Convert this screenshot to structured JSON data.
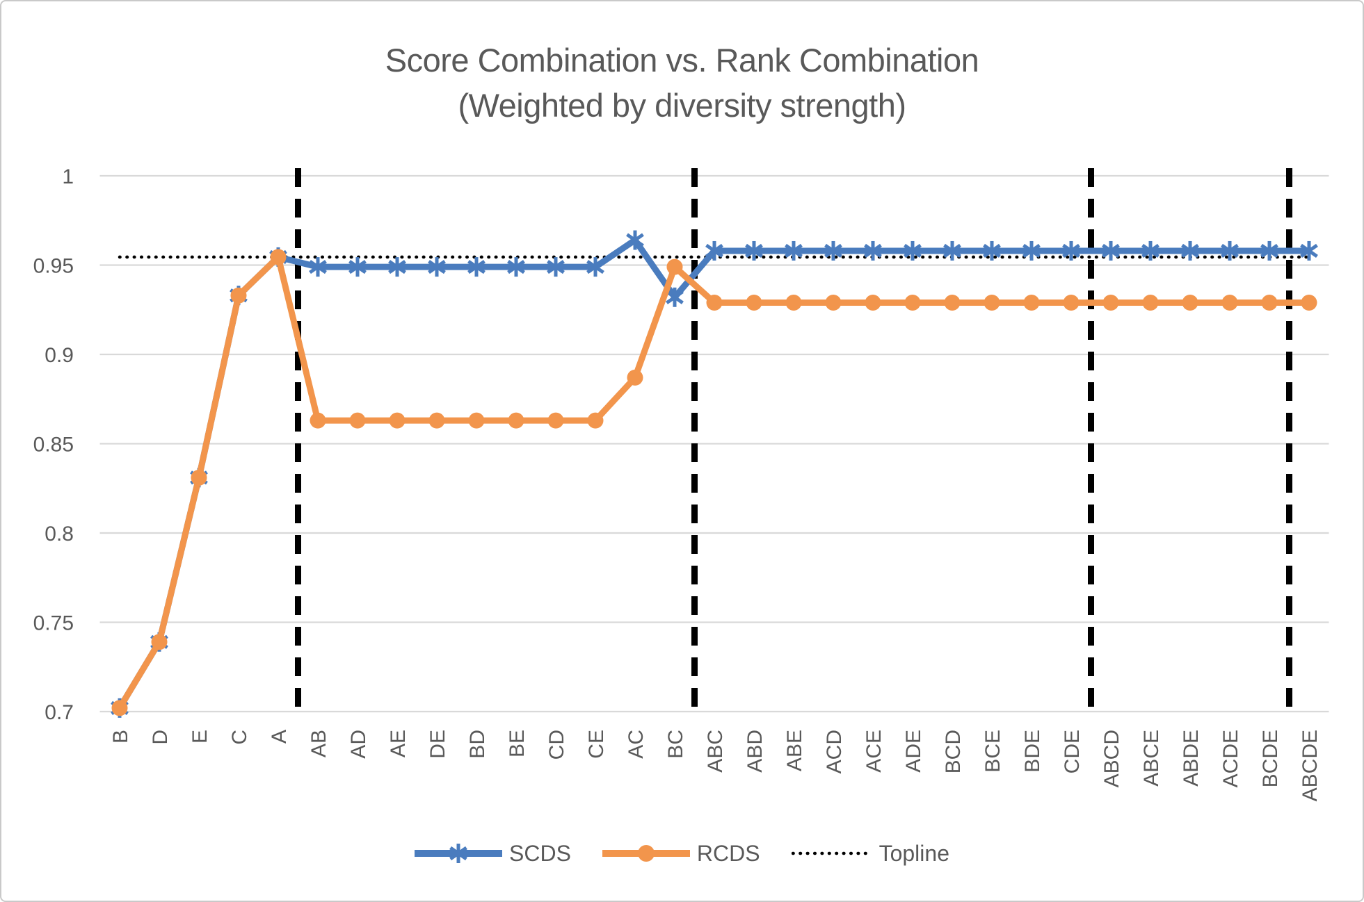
{
  "window": {
    "background": "#ffffff",
    "border_color": "#c9c9c9"
  },
  "title": {
    "line1": "Score Combination vs. Rank Combination",
    "line2": "(Weighted by diversity strength)",
    "color": "#595959"
  },
  "legend": {
    "items": [
      {
        "label": "SCDS",
        "swatch": "line-asterisk-marker",
        "color": "#4a7cbe"
      },
      {
        "label": "RCDS",
        "swatch": "line-circle-marker",
        "color": "#f2954c"
      },
      {
        "label": "Topline",
        "swatch": "dotted-line",
        "color": "#000000"
      }
    ]
  },
  "chart_data": {
    "type": "line",
    "title": "Score Combination vs. Rank Combination (Weighted by diversity strength)",
    "xlabel": "",
    "ylabel": "",
    "ylim": [
      0.7,
      1.0
    ],
    "yticks": [
      1,
      0.95,
      0.9,
      0.85,
      0.8,
      0.75,
      0.7
    ],
    "ytick_labels": [
      "1",
      "0.95",
      "0.9",
      "0.85",
      "0.8",
      "0.75",
      "0.7"
    ],
    "grid": true,
    "gridline_color": "#d9d9d9",
    "axis_text_color": "#595959",
    "legend_position": "bottom",
    "categories": [
      "B",
      "D",
      "E",
      "C",
      "A",
      "AB",
      "AD",
      "AE",
      "DE",
      "BD",
      "BE",
      "CD",
      "CE",
      "AC",
      "BC",
      "ABC",
      "ABD",
      "ABE",
      "ACD",
      "ACE",
      "ADE",
      "BCD",
      "BCE",
      "BDE",
      "CDE",
      "ABCD",
      "ABCE",
      "ABDE",
      "ACDE",
      "BCDE",
      "ABCDE"
    ],
    "separators_after_index": [
      4,
      14,
      24,
      29
    ],
    "separator_style": {
      "color": "#000000",
      "dashed": true
    },
    "series": [
      {
        "name": "SCDS",
        "color": "#4a7cbe",
        "marker": "asterisk",
        "values": [
          0.702,
          0.739,
          0.831,
          0.933,
          0.9545,
          0.949,
          0.949,
          0.949,
          0.949,
          0.949,
          0.949,
          0.949,
          0.949,
          0.964,
          0.932,
          0.958,
          0.958,
          0.958,
          0.958,
          0.958,
          0.958,
          0.958,
          0.958,
          0.958,
          0.958,
          0.958,
          0.958,
          0.958,
          0.958,
          0.958,
          0.958
        ]
      },
      {
        "name": "RCDS",
        "color": "#f2954c",
        "marker": "circle",
        "values": [
          0.702,
          0.739,
          0.831,
          0.933,
          0.9545,
          0.863,
          0.863,
          0.863,
          0.863,
          0.863,
          0.863,
          0.863,
          0.863,
          0.887,
          0.949,
          0.929,
          0.929,
          0.929,
          0.929,
          0.929,
          0.929,
          0.929,
          0.929,
          0.929,
          0.929,
          0.929,
          0.929,
          0.929,
          0.929,
          0.929,
          0.929
        ]
      }
    ],
    "topline": {
      "name": "Topline",
      "value": 0.9545,
      "color": "#000000",
      "style": "dotted"
    }
  }
}
